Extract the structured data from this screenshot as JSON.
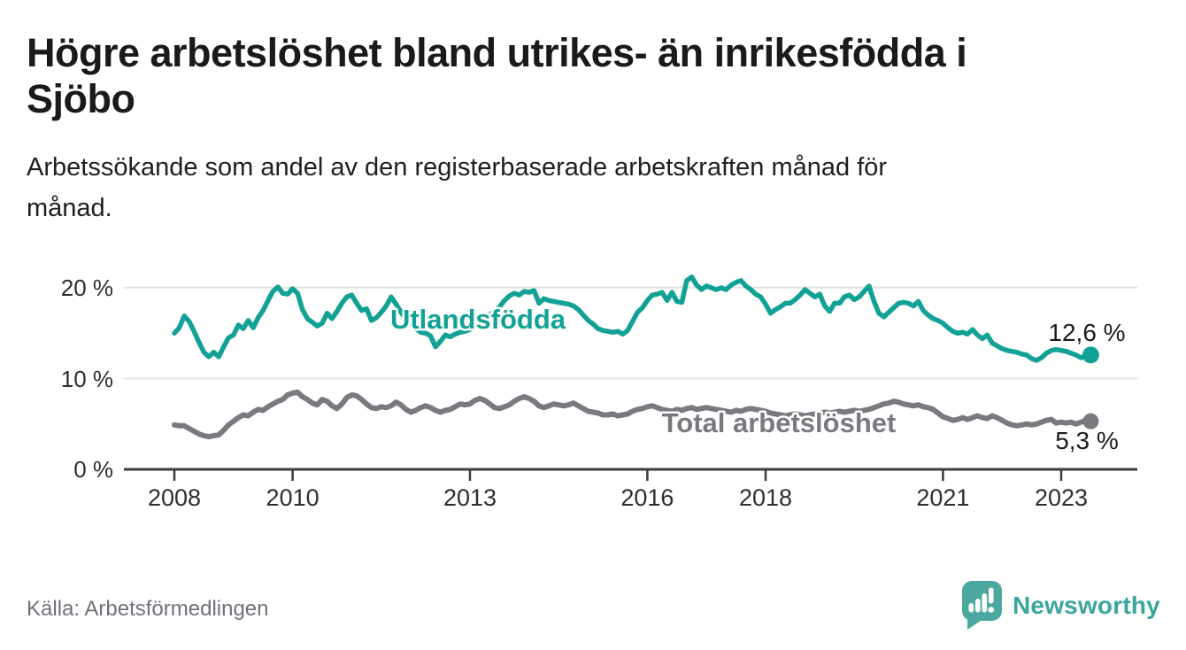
{
  "header": {
    "title_lines": [
      "Högre arbetslöshet bland utrikes- än inrikesfödda i",
      "Sjöbo"
    ],
    "subtitle_lines": [
      "Arbetssökande som andel av den registerbaserade arbetskraften månad för",
      "månad."
    ]
  },
  "footer": {
    "source": "Källa: Arbetsförmedlingen",
    "logo_text": "Newsworthy"
  },
  "colors": {
    "series_foreign_born": "#12A295",
    "series_total": "#797980",
    "logo_bubble": "#4BA89E",
    "logo_text": "#3AA69B",
    "gridline": "#e2e2e2",
    "axis": "#3c3c3c"
  },
  "chart_data": {
    "type": "line",
    "title": "Högre arbetslöshet bland utrikes- än inrikesfödda i Sjöbo",
    "subtitle": "Arbetssökande som andel av den registerbaserade arbetskraften månad för månad.",
    "x_unit": "month",
    "x_range": [
      "2008-01",
      "2023-07"
    ],
    "ylim": [
      0,
      22
    ],
    "grid": "horizontal",
    "legend_position": "inline-labels",
    "x_tick_labels": [
      "2008",
      "2010",
      "2013",
      "2016",
      "2018",
      "2021",
      "2023"
    ],
    "y_tick_labels": [
      "0 %",
      "10 %",
      "20 %"
    ],
    "y_tick_values": [
      0,
      10,
      20
    ],
    "source": "Källa: Arbetsförmedlingen",
    "series": [
      {
        "name": "Utlandsfödda",
        "color": "#12A295",
        "end_value": 12.6,
        "end_label": "12,6 %",
        "values": [
          15.0,
          15.6,
          16.9,
          16.3,
          15.2,
          14.0,
          12.9,
          12.4,
          12.9,
          12.4,
          13.5,
          14.5,
          14.8,
          15.9,
          15.5,
          16.4,
          15.6,
          16.7,
          17.5,
          18.6,
          19.6,
          20.1,
          19.4,
          19.3,
          19.9,
          19.4,
          17.6,
          16.6,
          16.2,
          15.8,
          16.1,
          17.2,
          16.6,
          17.4,
          18.3,
          19.0,
          19.2,
          18.3,
          17.5,
          17.7,
          16.4,
          16.7,
          17.3,
          18.0,
          19.0,
          18.2,
          17.3,
          16.6,
          16.1,
          15.5,
          15.1,
          15.0,
          14.7,
          13.5,
          14.1,
          14.8,
          14.6,
          14.9,
          15.1,
          15.2,
          15.4,
          15.7,
          16.1,
          16.5,
          17.0,
          17.4,
          17.9,
          18.6,
          19.1,
          19.4,
          19.2,
          19.6,
          19.5,
          19.7,
          18.3,
          18.8,
          18.6,
          18.5,
          18.4,
          18.3,
          18.2,
          18.0,
          17.6,
          17.0,
          16.4,
          16.0,
          15.5,
          15.3,
          15.2,
          15.1,
          15.2,
          14.9,
          15.3,
          16.3,
          17.3,
          17.8,
          18.6,
          19.2,
          19.3,
          19.5,
          18.6,
          19.5,
          18.5,
          18.4,
          20.8,
          21.2,
          20.3,
          19.8,
          20.2,
          20.0,
          19.8,
          20.0,
          19.8,
          20.3,
          20.6,
          20.8,
          20.2,
          19.8,
          19.3,
          19.0,
          18.2,
          17.2,
          17.6,
          17.9,
          18.3,
          18.3,
          18.7,
          19.2,
          19.8,
          19.4,
          19.0,
          19.3,
          18.0,
          17.4,
          18.3,
          18.3,
          19.0,
          19.2,
          18.7,
          19.0,
          19.6,
          20.2,
          18.5,
          17.2,
          16.8,
          17.3,
          17.8,
          18.3,
          18.4,
          18.3,
          18.0,
          18.5,
          17.5,
          17.0,
          16.6,
          16.4,
          16.1,
          15.6,
          15.2,
          15.0,
          15.1,
          14.9,
          15.4,
          14.8,
          14.4,
          14.8,
          13.9,
          13.6,
          13.3,
          13.1,
          13.0,
          12.9,
          12.7,
          12.6,
          12.2,
          12.0,
          12.3,
          12.8,
          13.1,
          13.2,
          13.1,
          13.0,
          12.8,
          12.6,
          12.3,
          12.4,
          12.6
        ]
      },
      {
        "name": "Total arbetslöshet",
        "color": "#797980",
        "end_value": 5.3,
        "end_label": "5,3 %",
        "values": [
          4.9,
          4.8,
          4.8,
          4.5,
          4.2,
          3.9,
          3.7,
          3.6,
          3.7,
          3.8,
          4.3,
          4.9,
          5.3,
          5.7,
          6.0,
          5.9,
          6.3,
          6.6,
          6.5,
          6.9,
          7.2,
          7.5,
          7.7,
          8.2,
          8.4,
          8.5,
          8.0,
          7.7,
          7.3,
          7.1,
          7.7,
          7.5,
          7.0,
          6.7,
          7.2,
          7.9,
          8.2,
          8.1,
          7.7,
          7.2,
          6.8,
          6.7,
          6.9,
          6.8,
          7.0,
          7.4,
          7.1,
          6.6,
          6.3,
          6.5,
          6.8,
          7.0,
          6.8,
          6.5,
          6.3,
          6.5,
          6.6,
          6.9,
          7.2,
          7.1,
          7.2,
          7.6,
          7.8,
          7.6,
          7.2,
          6.8,
          6.7,
          6.9,
          7.1,
          7.5,
          7.8,
          8.0,
          7.8,
          7.5,
          7.0,
          6.8,
          7.0,
          7.2,
          7.1,
          7.0,
          7.1,
          7.3,
          7.0,
          6.7,
          6.4,
          6.3,
          6.2,
          6.0,
          6.0,
          6.1,
          5.9,
          6.0,
          6.1,
          6.4,
          6.6,
          6.7,
          6.9,
          7.0,
          6.8,
          6.6,
          6.5,
          6.4,
          6.6,
          6.5,
          6.7,
          6.8,
          6.6,
          6.7,
          6.8,
          6.7,
          6.6,
          6.5,
          6.4,
          6.3,
          6.5,
          6.4,
          6.6,
          6.7,
          6.6,
          6.5,
          6.4,
          6.2,
          6.1,
          6.0,
          5.9,
          6.0,
          6.1,
          6.0,
          5.9,
          6.0,
          6.1,
          6.2,
          6.3,
          6.2,
          6.3,
          6.4,
          6.3,
          6.4,
          6.5,
          6.4,
          6.5,
          6.6,
          6.8,
          7.0,
          7.2,
          7.3,
          7.5,
          7.4,
          7.2,
          7.1,
          7.0,
          7.1,
          6.9,
          6.8,
          6.6,
          6.2,
          5.8,
          5.6,
          5.4,
          5.5,
          5.7,
          5.5,
          5.7,
          5.9,
          5.7,
          5.6,
          5.9,
          5.7,
          5.4,
          5.1,
          4.9,
          4.8,
          4.9,
          5.0,
          4.9,
          5.0,
          5.2,
          5.4,
          5.5,
          5.1,
          5.2,
          5.1,
          5.2,
          5.0,
          5.2,
          5.4,
          5.3
        ]
      }
    ]
  }
}
